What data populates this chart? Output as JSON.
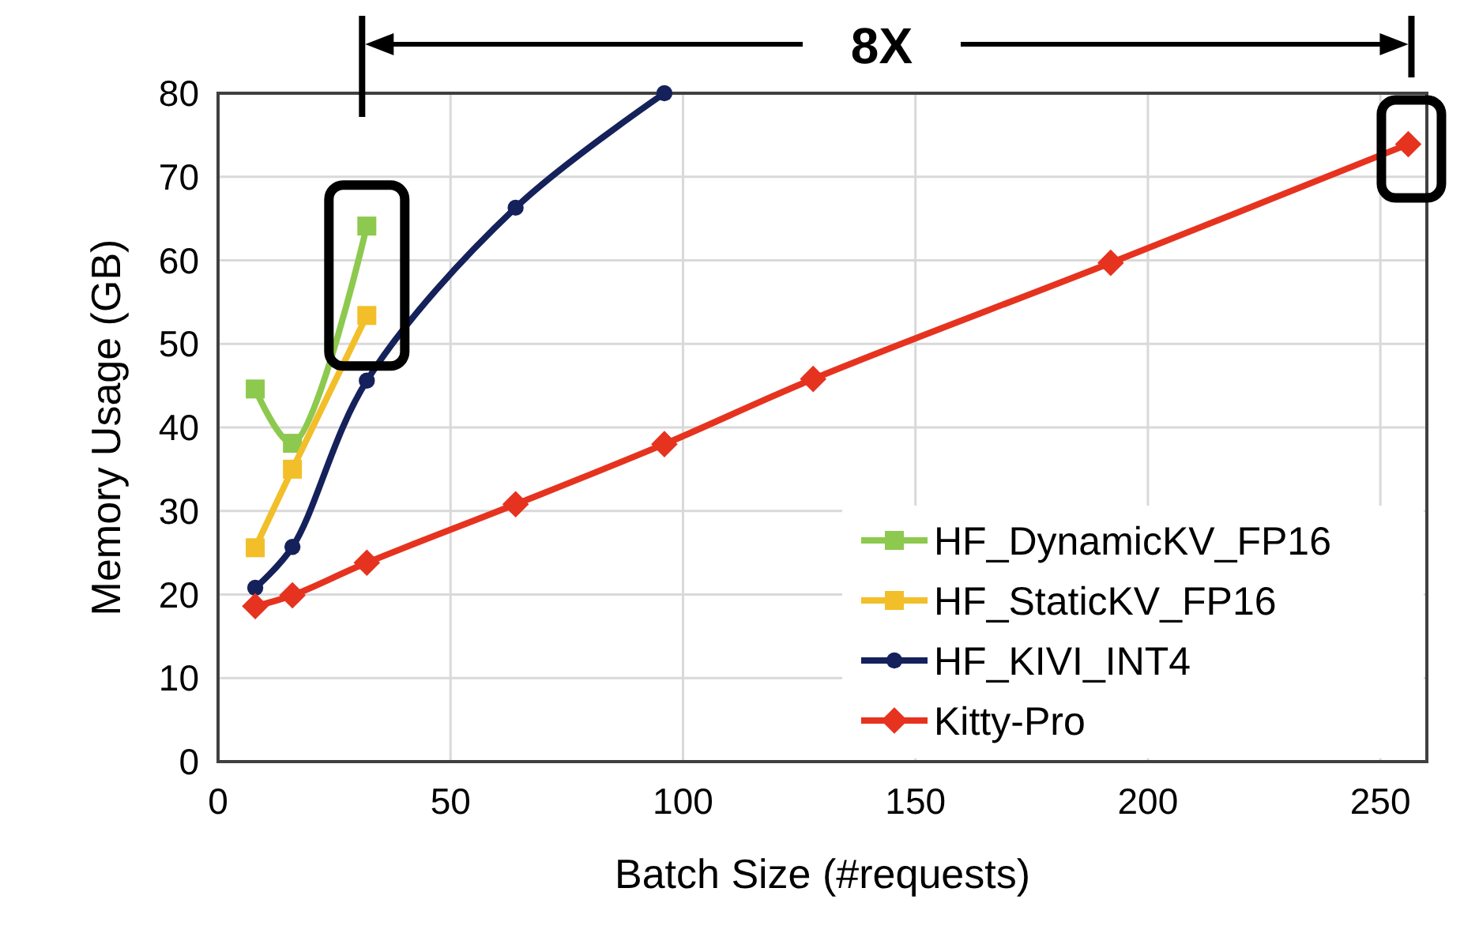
{
  "chart_data": {
    "type": "line",
    "xlabel": "Batch Size (#requests)",
    "ylabel": "Memory Usage (GB)",
    "xlim": [
      0,
      260
    ],
    "xticks": [
      0,
      50,
      100,
      150,
      200,
      250
    ],
    "ylim": [
      0,
      80
    ],
    "yticks": [
      0,
      10,
      20,
      30,
      40,
      50,
      60,
      70,
      80
    ],
    "grid": true,
    "legend": "bottom right",
    "line_style": "solid",
    "annotations": [
      "8X"
    ],
    "series": [
      {
        "name": "HF_DynamicKV_FP16",
        "color": "#8dc94e",
        "marker": "square",
        "x": [
          8,
          16,
          32
        ],
        "values": [
          44.6,
          38.1,
          64.1
        ]
      },
      {
        "name": "HF_StaticKV_FP16",
        "color": "#f2bf2a",
        "marker": "square",
        "x": [
          8,
          16,
          32
        ],
        "values": [
          25.6,
          35.0,
          53.4
        ]
      },
      {
        "name": "HF_KIVI_INT4",
        "color": "#15215a",
        "marker": "circle",
        "x": [
          8,
          16,
          32,
          64,
          96
        ],
        "values": [
          20.8,
          25.7,
          45.6,
          66.3,
          80
        ]
      },
      {
        "name": "Kitty-Pro",
        "color": "#e6331f",
        "marker": "diamond",
        "x": [
          8,
          16,
          32,
          64,
          96,
          128,
          192,
          256
        ],
        "values": [
          18.6,
          19.9,
          23.8,
          30.8,
          38.0,
          45.8,
          59.7,
          73.9
        ]
      }
    ]
  }
}
